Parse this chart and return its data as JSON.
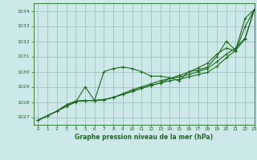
{
  "title": "Graphe pression niveau de la mer (hPa)",
  "bg_color": "#cce8e8",
  "grid_color": "#99bbbb",
  "line_color": "#1a6b1a",
  "xlim": [
    -0.5,
    23
  ],
  "ylim": [
    1026.5,
    1034.5
  ],
  "yticks": [
    1027,
    1028,
    1029,
    1030,
    1031,
    1032,
    1033,
    1034
  ],
  "xticks": [
    0,
    1,
    2,
    3,
    4,
    5,
    6,
    7,
    8,
    9,
    10,
    11,
    12,
    13,
    14,
    15,
    16,
    17,
    18,
    19,
    20,
    21,
    22,
    23
  ],
  "series": [
    [
      1026.8,
      1027.1,
      1027.4,
      1027.7,
      1028.0,
      1029.0,
      1028.1,
      1030.0,
      1030.2,
      1030.3,
      1030.2,
      1030.0,
      1029.7,
      1029.7,
      1029.6,
      1029.4,
      1030.0,
      1030.1,
      1030.3,
      1031.0,
      1032.0,
      1031.4,
      1033.5,
      1034.1
    ],
    [
      1026.8,
      1027.1,
      1027.4,
      1027.8,
      1028.05,
      1028.1,
      1028.1,
      1028.15,
      1028.3,
      1028.55,
      1028.8,
      1029.0,
      1029.2,
      1029.4,
      1029.55,
      1029.65,
      1029.8,
      1030.0,
      1030.2,
      1030.65,
      1031.15,
      1031.55,
      1032.2,
      1034.1
    ],
    [
      1026.8,
      1027.1,
      1027.4,
      1027.8,
      1028.05,
      1028.1,
      1028.1,
      1028.15,
      1028.3,
      1028.5,
      1028.7,
      1028.9,
      1029.1,
      1029.25,
      1029.4,
      1029.5,
      1029.65,
      1029.8,
      1029.95,
      1030.35,
      1030.9,
      1031.4,
      1032.15,
      1034.1
    ],
    [
      1026.8,
      1027.1,
      1027.4,
      1027.8,
      1028.05,
      1028.1,
      1028.1,
      1028.15,
      1028.3,
      1028.5,
      1028.7,
      1028.9,
      1029.1,
      1029.25,
      1029.55,
      1029.75,
      1029.95,
      1030.25,
      1030.55,
      1031.15,
      1031.55,
      1031.35,
      1032.95,
      1034.1
    ]
  ]
}
